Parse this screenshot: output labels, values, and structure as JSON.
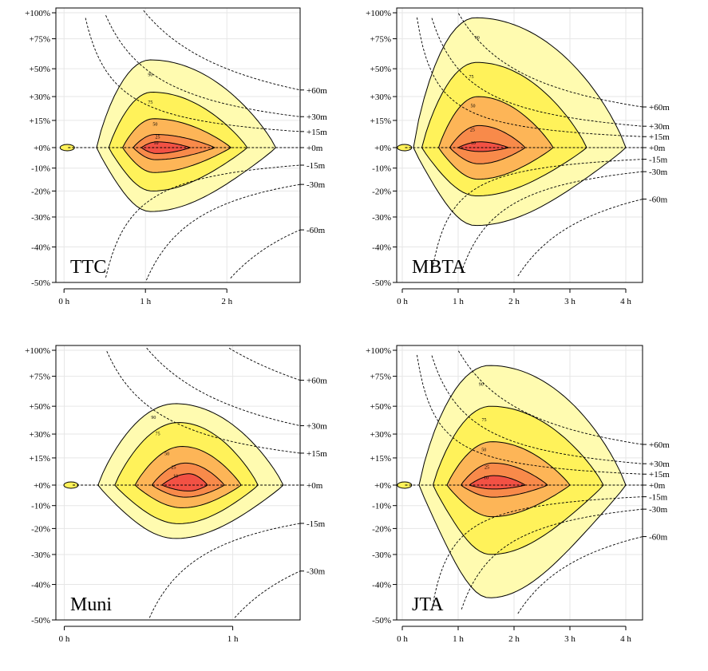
{
  "chart_data": [
    {
      "type": "contour",
      "panel_label": "TTC",
      "x_ticks": [
        "0 h",
        "1 h",
        "2 h"
      ],
      "x_tick_values_h": [
        0,
        1,
        2
      ],
      "xlim_h": [
        -0.1,
        2.9
      ],
      "y_ticks": [
        "+100%",
        "+75%",
        "+50%",
        "+30%",
        "+15%",
        "+0%",
        "-10%",
        "-20%",
        "-30%",
        "-40%",
        "-50%"
      ],
      "y_tick_values": [
        100,
        75,
        50,
        30,
        15,
        0,
        -10,
        -20,
        -30,
        -40,
        -50
      ],
      "reference_curves": [
        "+60m",
        "+30m",
        "+15m",
        "+0m",
        "-15m",
        "-30m",
        "-60m"
      ],
      "reference_minutes": [
        60,
        30,
        15,
        0,
        -15,
        -30,
        -60
      ],
      "contour_levels": [
        "90",
        "75",
        "50",
        "25",
        "10"
      ],
      "contour_colors": [
        "#fffbb0",
        "#fff25a",
        "#fdb557",
        "#f88a4a",
        "#f25144"
      ]
    },
    {
      "type": "contour",
      "panel_label": "MBTA",
      "x_ticks": [
        "0 h",
        "1 h",
        "2 h",
        "3 h",
        "4 h"
      ],
      "x_tick_values_h": [
        0,
        1,
        2,
        3,
        4
      ],
      "xlim_h": [
        -0.1,
        4.3
      ],
      "y_ticks": [
        "+100%",
        "+75%",
        "+50%",
        "+30%",
        "+15%",
        "+0%",
        "-10%",
        "-20%",
        "-30%",
        "-40%",
        "-50%"
      ],
      "y_tick_values": [
        100,
        75,
        50,
        30,
        15,
        0,
        -10,
        -20,
        -30,
        -40,
        -50
      ],
      "reference_curves": [
        "+60m",
        "+30m",
        "+15m",
        "+0m",
        "-15m",
        "-30m",
        "-60m"
      ],
      "reference_minutes": [
        60,
        30,
        15,
        0,
        -15,
        -30,
        -60
      ],
      "contour_levels": [
        "90",
        "75",
        "50",
        "25",
        "10"
      ],
      "contour_colors": [
        "#fffbb0",
        "#fff25a",
        "#fdb557",
        "#f88a4a",
        "#f25144"
      ]
    },
    {
      "type": "contour",
      "panel_label": "Muni",
      "x_ticks": [
        "0 h",
        "1 h"
      ],
      "x_tick_values_h": [
        0,
        1
      ],
      "xlim_h": [
        -0.05,
        1.4
      ],
      "y_ticks": [
        "+100%",
        "+75%",
        "+50%",
        "+30%",
        "+15%",
        "+0%",
        "-10%",
        "-20%",
        "-30%",
        "-40%",
        "-50%"
      ],
      "y_tick_values": [
        100,
        75,
        50,
        30,
        15,
        0,
        -10,
        -20,
        -30,
        -40,
        -50
      ],
      "reference_curves": [
        "+60m",
        "+30m",
        "+15m",
        "+0m",
        "-15m",
        "-30m"
      ],
      "reference_minutes": [
        60,
        30,
        15,
        0,
        -15,
        -30
      ],
      "contour_levels": [
        "90",
        "75",
        "50",
        "25",
        "10"
      ],
      "contour_colors": [
        "#fffbb0",
        "#fff25a",
        "#fdb557",
        "#f88a4a",
        "#f25144"
      ]
    },
    {
      "type": "contour",
      "panel_label": "JTA",
      "x_ticks": [
        "0 h",
        "1 h",
        "2 h",
        "3 h",
        "4 h"
      ],
      "x_tick_values_h": [
        0,
        1,
        2,
        3,
        4
      ],
      "xlim_h": [
        -0.1,
        4.3
      ],
      "y_ticks": [
        "+100%",
        "+75%",
        "+50%",
        "+30%",
        "+15%",
        "+0%",
        "-10%",
        "-20%",
        "-30%",
        "-40%",
        "-50%"
      ],
      "y_tick_values": [
        100,
        75,
        50,
        30,
        15,
        0,
        -10,
        -20,
        -30,
        -40,
        -50
      ],
      "reference_curves": [
        "+60m",
        "+30m",
        "+15m",
        "+0m",
        "-15m",
        "-30m",
        "-60m"
      ],
      "reference_minutes": [
        60,
        30,
        15,
        0,
        -15,
        -30,
        -60
      ],
      "contour_levels": [
        "90",
        "75",
        "50",
        "25",
        "10"
      ],
      "contour_colors": [
        "#fffbb0",
        "#fff25a",
        "#fdb557",
        "#f88a4a",
        "#f25144"
      ]
    }
  ]
}
